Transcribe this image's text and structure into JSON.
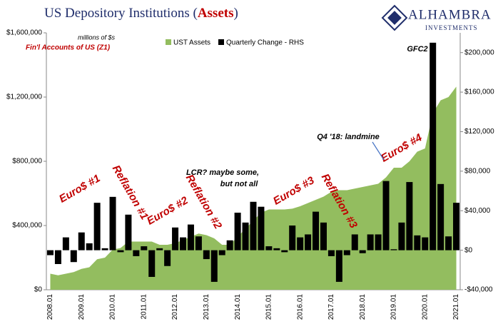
{
  "chart_data": {
    "type": "bar_area",
    "title_parts": [
      "US Depository Institutions (",
      "Assets",
      ")"
    ],
    "logo": [
      "ALHAMBRA",
      "INVESTMENTS"
    ],
    "categories": [
      "2008.01",
      null,
      null,
      null,
      "2009.01",
      null,
      null,
      null,
      "2010.01",
      null,
      null,
      null,
      "2011.01",
      null,
      null,
      null,
      "2012.01",
      null,
      null,
      null,
      "2013.01",
      null,
      null,
      null,
      "2014.01",
      null,
      null,
      null,
      "2015.01",
      null,
      null,
      null,
      "2016.01",
      null,
      null,
      null,
      "2017.01",
      null,
      null,
      null,
      "2018.01",
      null,
      null,
      null,
      "2019.01",
      null,
      null,
      null,
      "2020.01",
      null,
      null,
      null,
      "2021.01"
    ],
    "series": [
      {
        "name": "UST Assets",
        "color": "#93bd5f",
        "axis": "y",
        "values": [
          100000,
          90000,
          100000,
          110000,
          130000,
          140000,
          190000,
          200000,
          250000,
          260000,
          300000,
          300000,
          300000,
          300000,
          280000,
          280000,
          290000,
          310000,
          330000,
          350000,
          340000,
          320000,
          280000,
          280000,
          330000,
          380000,
          430000,
          480000,
          500000,
          500000,
          500000,
          505000,
          520000,
          540000,
          560000,
          580000,
          610000,
          620000,
          620000,
          630000,
          640000,
          650000,
          660000,
          700000,
          760000,
          760000,
          800000,
          860000,
          880000,
          1100000,
          1180000,
          1200000,
          1265000
        ]
      },
      {
        "name": "Quarterly Change - RHS",
        "color": "#000000",
        "axis": "y2",
        "values": [
          -5000,
          -14000,
          13000,
          -12000,
          18000,
          7000,
          48000,
          2000,
          54000,
          -2000,
          36000,
          -6000,
          4000,
          -27000,
          2000,
          -16000,
          23000,
          13000,
          26000,
          14000,
          -9000,
          -32000,
          -5000,
          10000,
          38000,
          28000,
          49000,
          44000,
          4000,
          2000,
          -2000,
          25000,
          13000,
          16000,
          39000,
          28000,
          -6000,
          -32000,
          -5000,
          16000,
          -3000,
          16000,
          16000,
          70000,
          1000,
          28000,
          69000,
          15000,
          13000,
          210000,
          67000,
          14000,
          48000
        ]
      }
    ],
    "ylim": [
      0,
      1600000
    ],
    "yticks": [
      {
        "value": 0,
        "label": "$0"
      },
      {
        "value": 400000,
        "label": "$400,000"
      },
      {
        "value": 800000,
        "label": "$800,000"
      },
      {
        "value": 1200000,
        "label": "$1,200,000"
      },
      {
        "value": 1600000,
        "label": "$1,600,000"
      }
    ],
    "y2lim": [
      -40000,
      220000
    ],
    "y2ticks": [
      {
        "value": -40000,
        "label": "-$40,000"
      },
      {
        "value": 0,
        "label": "$0"
      },
      {
        "value": 40000,
        "label": "$40,000"
      },
      {
        "value": 80000,
        "label": "$80,000"
      },
      {
        "value": 120000,
        "label": "$120,000"
      },
      {
        "value": 160000,
        "label": "$160,000"
      },
      {
        "value": 200000,
        "label": "$200,000"
      }
    ],
    "annotations": [
      "millions of $s",
      "Fin'l Accounts of US (Z1)",
      "Euro$ #1",
      "Reflation #1",
      "Euro$ #2",
      "Reflation #2",
      "LCR? maybe some,",
      "but not all",
      "Euro$ #3",
      "Reflation #3",
      "Q4 '18: landmine",
      "Euro$ #4",
      "GFC2"
    ]
  }
}
